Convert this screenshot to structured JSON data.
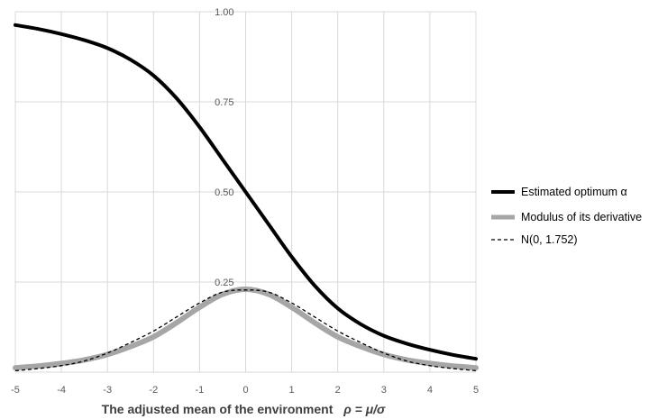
{
  "chart_data": {
    "type": "line",
    "xlabel": "The adjusted mean of the environment",
    "xlabel_math": "ρ = μ/σ",
    "ylabel": "",
    "xlim": [
      -5,
      5
    ],
    "ylim": [
      0,
      1
    ],
    "x_ticks": [
      -5,
      -4,
      -3,
      -2,
      -1,
      0,
      1,
      2,
      3,
      4,
      5
    ],
    "x_tick_labels": [
      "-5",
      "-4",
      "-3",
      "-2",
      "-1",
      "0",
      "1",
      "2",
      "3",
      "4",
      "5"
    ],
    "y_ticks": [
      0.25,
      0.5,
      0.75,
      1.0
    ],
    "y_tick_labels": [
      "0.25",
      "0.50",
      "0.75",
      "1.00"
    ],
    "grid": true,
    "legend_position": "right",
    "x": [
      -5,
      -4.5,
      -4,
      -3.5,
      -3,
      -2.5,
      -2,
      -1.5,
      -1,
      -0.5,
      0,
      0.5,
      1,
      1.5,
      2,
      2.5,
      3,
      3.5,
      4,
      4.5,
      5
    ],
    "series": [
      {
        "name": "Estimated optimum α",
        "color": "#000000",
        "style": "solid-thick",
        "values": [
          0.963,
          0.952,
          0.938,
          0.921,
          0.899,
          0.867,
          0.823,
          0.76,
          0.68,
          0.59,
          0.5,
          0.41,
          0.32,
          0.24,
          0.177,
          0.133,
          0.101,
          0.079,
          0.062,
          0.048,
          0.037
        ]
      },
      {
        "name": "Modulus of its derivative",
        "color": "#a6a6a6",
        "style": "solid-thicker",
        "values": [
          0.012,
          0.017,
          0.024,
          0.034,
          0.049,
          0.071,
          0.098,
          0.137,
          0.18,
          0.216,
          0.23,
          0.216,
          0.18,
          0.137,
          0.098,
          0.071,
          0.049,
          0.034,
          0.024,
          0.017,
          0.012
        ]
      },
      {
        "name": "N(0, 1.752)",
        "color": "#000000",
        "style": "dashed",
        "values": [
          0.004,
          0.01,
          0.018,
          0.031,
          0.053,
          0.082,
          0.114,
          0.153,
          0.192,
          0.222,
          0.228,
          0.222,
          0.192,
          0.153,
          0.114,
          0.082,
          0.053,
          0.031,
          0.018,
          0.01,
          0.004
        ]
      }
    ]
  }
}
